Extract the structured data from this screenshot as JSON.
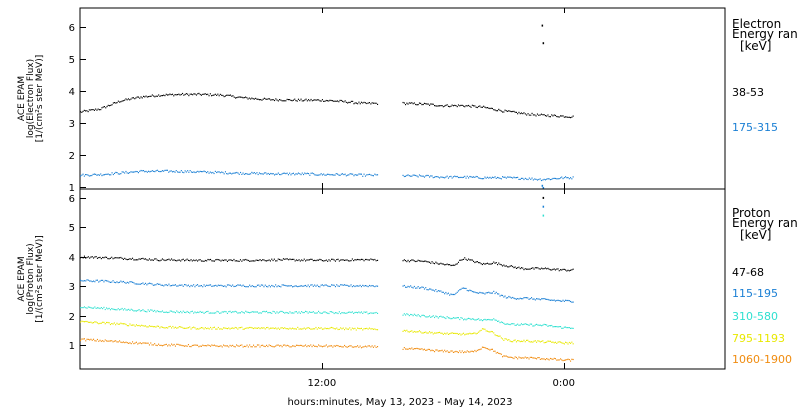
{
  "colors": {
    "black": "#000000",
    "blue": "#1a7fd4",
    "cyan": "#2fe0d0",
    "yellow": "#e8e800",
    "orange": "#f08c10"
  },
  "x_axis": {
    "label": "hours:minutes, May 13, 2023 - May 14, 2023",
    "range_hours": [
      0,
      32
    ],
    "ticks": [
      {
        "h": 12,
        "label": "12:00"
      },
      {
        "h": 24,
        "label": "0:00"
      }
    ]
  },
  "chart_data": [
    {
      "type": "scatter",
      "panel": "electron",
      "ylabel_lines": [
        "ACE EPAM",
        "log(Electron Flux)",
        "[1/(cm²s ster MeV)]"
      ],
      "ylim": [
        0.95,
        6.6
      ],
      "yticks": [
        1,
        2,
        3,
        4,
        5,
        6
      ],
      "legend_title": [
        "Electron",
        "Energy ran"
      ],
      "legend_unit": "[keV]",
      "series": [
        {
          "name": "38-53",
          "color_key": "black",
          "x": [
            0,
            1,
            2,
            3,
            4,
            5,
            6,
            7,
            8,
            9,
            10,
            11,
            12,
            13,
            14,
            14.8,
            15.2,
            16,
            17,
            18,
            19,
            20,
            21,
            22,
            22.8,
            23,
            24,
            24.5
          ],
          "y": [
            3.35,
            3.45,
            3.7,
            3.82,
            3.88,
            3.9,
            3.9,
            3.88,
            3.8,
            3.75,
            3.73,
            3.72,
            3.72,
            3.68,
            3.62,
            3.62,
            null,
            3.62,
            3.6,
            3.55,
            3.55,
            3.5,
            3.38,
            3.3,
            3.25,
            3.25,
            3.22,
            3.2
          ],
          "spikes": [
            {
              "x": 22.9,
              "y": 6.05
            },
            {
              "x": 22.95,
              "y": 5.5
            }
          ]
        },
        {
          "name": "175-315",
          "color_key": "blue",
          "x": [
            0,
            1,
            2,
            3,
            4,
            5,
            6,
            7,
            8,
            9,
            10,
            11,
            12,
            13,
            14,
            14.8,
            15.2,
            16,
            17,
            18,
            19,
            20,
            21,
            22,
            22.8,
            23,
            24,
            24.5
          ],
          "y": [
            1.38,
            1.4,
            1.45,
            1.5,
            1.5,
            1.5,
            1.48,
            1.46,
            1.44,
            1.43,
            1.42,
            1.42,
            1.4,
            1.4,
            1.38,
            1.38,
            null,
            1.36,
            1.35,
            1.32,
            1.32,
            1.3,
            1.3,
            1.28,
            1.25,
            1.25,
            1.3,
            1.3
          ],
          "spikes": [
            {
              "x": 22.9,
              "y": 1.05
            },
            {
              "x": 22.95,
              "y": 0.98
            }
          ]
        }
      ]
    },
    {
      "type": "scatter",
      "panel": "proton",
      "ylabel_lines": [
        "ACE EPAM",
        "log(Proton Flux)",
        "[1/(cm²s ster MeV)]"
      ],
      "ylim": [
        0.2,
        6.3
      ],
      "yticks": [
        1,
        2,
        3,
        4,
        5,
        6
      ],
      "legend_title": [
        "Proton",
        "Energy ran"
      ],
      "legend_unit": "[keV]",
      "series": [
        {
          "name": "47-68",
          "color_key": "black",
          "x": [
            0,
            2,
            4,
            6,
            8,
            10,
            12,
            14,
            14.8,
            15.2,
            16,
            17,
            18,
            18.5,
            19,
            19.5,
            20,
            20.5,
            21,
            21.5,
            22,
            23,
            24,
            24.5
          ],
          "y": [
            4.0,
            3.95,
            3.9,
            3.88,
            3.88,
            3.9,
            3.88,
            3.9,
            3.9,
            null,
            3.88,
            3.85,
            3.75,
            3.7,
            3.95,
            3.85,
            3.75,
            3.8,
            3.72,
            3.65,
            3.6,
            3.6,
            3.55,
            3.55
          ],
          "spikes": [
            {
              "x": 22.95,
              "y": 6.0
            }
          ]
        },
        {
          "name": "115-195",
          "color_key": "blue",
          "x": [
            0,
            2,
            4,
            6,
            8,
            10,
            12,
            14,
            14.8,
            15.2,
            16,
            17,
            18,
            18.5,
            19,
            19.5,
            20,
            20.5,
            21,
            21.5,
            22,
            23,
            24,
            24.5
          ],
          "y": [
            3.2,
            3.15,
            3.05,
            3.02,
            3.02,
            3.02,
            3.02,
            3.02,
            3.02,
            null,
            3.0,
            2.95,
            2.8,
            2.7,
            2.95,
            2.8,
            2.75,
            2.8,
            2.65,
            2.6,
            2.6,
            2.55,
            2.5,
            2.5
          ],
          "spikes": [
            {
              "x": 22.95,
              "y": 5.7
            }
          ]
        },
        {
          "name": "310-580",
          "color_key": "cyan",
          "x": [
            0,
            2,
            4,
            6,
            8,
            10,
            12,
            14,
            14.8,
            15.2,
            16,
            17,
            18,
            19,
            19.5,
            20,
            20.5,
            21,
            21.5,
            22,
            23,
            24,
            24.5
          ],
          "y": [
            2.3,
            2.22,
            2.15,
            2.12,
            2.12,
            2.12,
            2.12,
            2.1,
            2.1,
            null,
            2.05,
            2.0,
            1.95,
            1.9,
            1.9,
            1.85,
            1.9,
            1.75,
            1.7,
            1.7,
            1.68,
            1.6,
            1.6
          ],
          "spikes": [
            {
              "x": 22.95,
              "y": 5.4
            }
          ]
        },
        {
          "name": "795-1193",
          "color_key": "yellow",
          "x": [
            0,
            2,
            4,
            6,
            8,
            10,
            12,
            14,
            14.8,
            15.2,
            16,
            17,
            18,
            19,
            19.5,
            20,
            20.5,
            21,
            21.5,
            22,
            23,
            24,
            24.5
          ],
          "y": [
            1.8,
            1.72,
            1.62,
            1.58,
            1.58,
            1.58,
            1.58,
            1.55,
            1.55,
            null,
            1.5,
            1.45,
            1.4,
            1.38,
            1.38,
            1.55,
            1.42,
            1.2,
            1.15,
            1.15,
            1.12,
            1.08,
            1.08
          ],
          "spikes": []
        },
        {
          "name": "1060-1900",
          "color_key": "orange",
          "x": [
            0,
            2,
            4,
            6,
            8,
            10,
            12,
            14,
            14.8,
            15.2,
            16,
            17,
            18,
            19,
            19.5,
            20,
            20.5,
            21,
            21.5,
            22,
            23,
            24,
            24.5
          ],
          "y": [
            1.2,
            1.12,
            1.02,
            0.98,
            0.98,
            0.98,
            0.98,
            0.95,
            0.95,
            null,
            0.9,
            0.85,
            0.8,
            0.78,
            0.78,
            0.95,
            0.82,
            0.62,
            0.58,
            0.58,
            0.55,
            0.5,
            0.5
          ],
          "spikes": []
        }
      ]
    }
  ]
}
